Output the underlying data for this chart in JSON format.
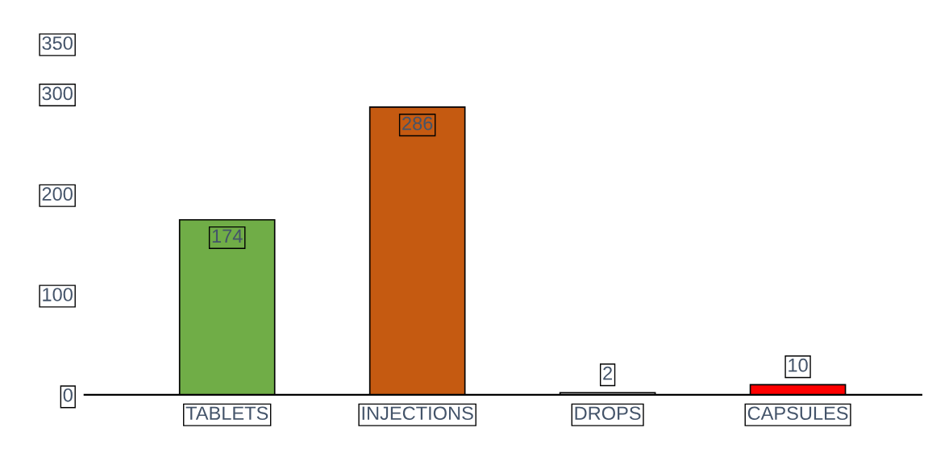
{
  "chart_data": {
    "type": "bar",
    "categories": [
      "TABLETS",
      "INJECTIONS",
      "DROPS",
      "CAPSULES"
    ],
    "values": [
      174,
      286,
      2,
      10
    ],
    "colors": [
      "#70ad47",
      "#c55a11",
      "#ffffff",
      "#ff0000"
    ],
    "ylim": [
      0,
      350
    ],
    "yticks": [
      0,
      100,
      200,
      300,
      350
    ],
    "data_labels": true,
    "grid": false,
    "legend": false
  }
}
